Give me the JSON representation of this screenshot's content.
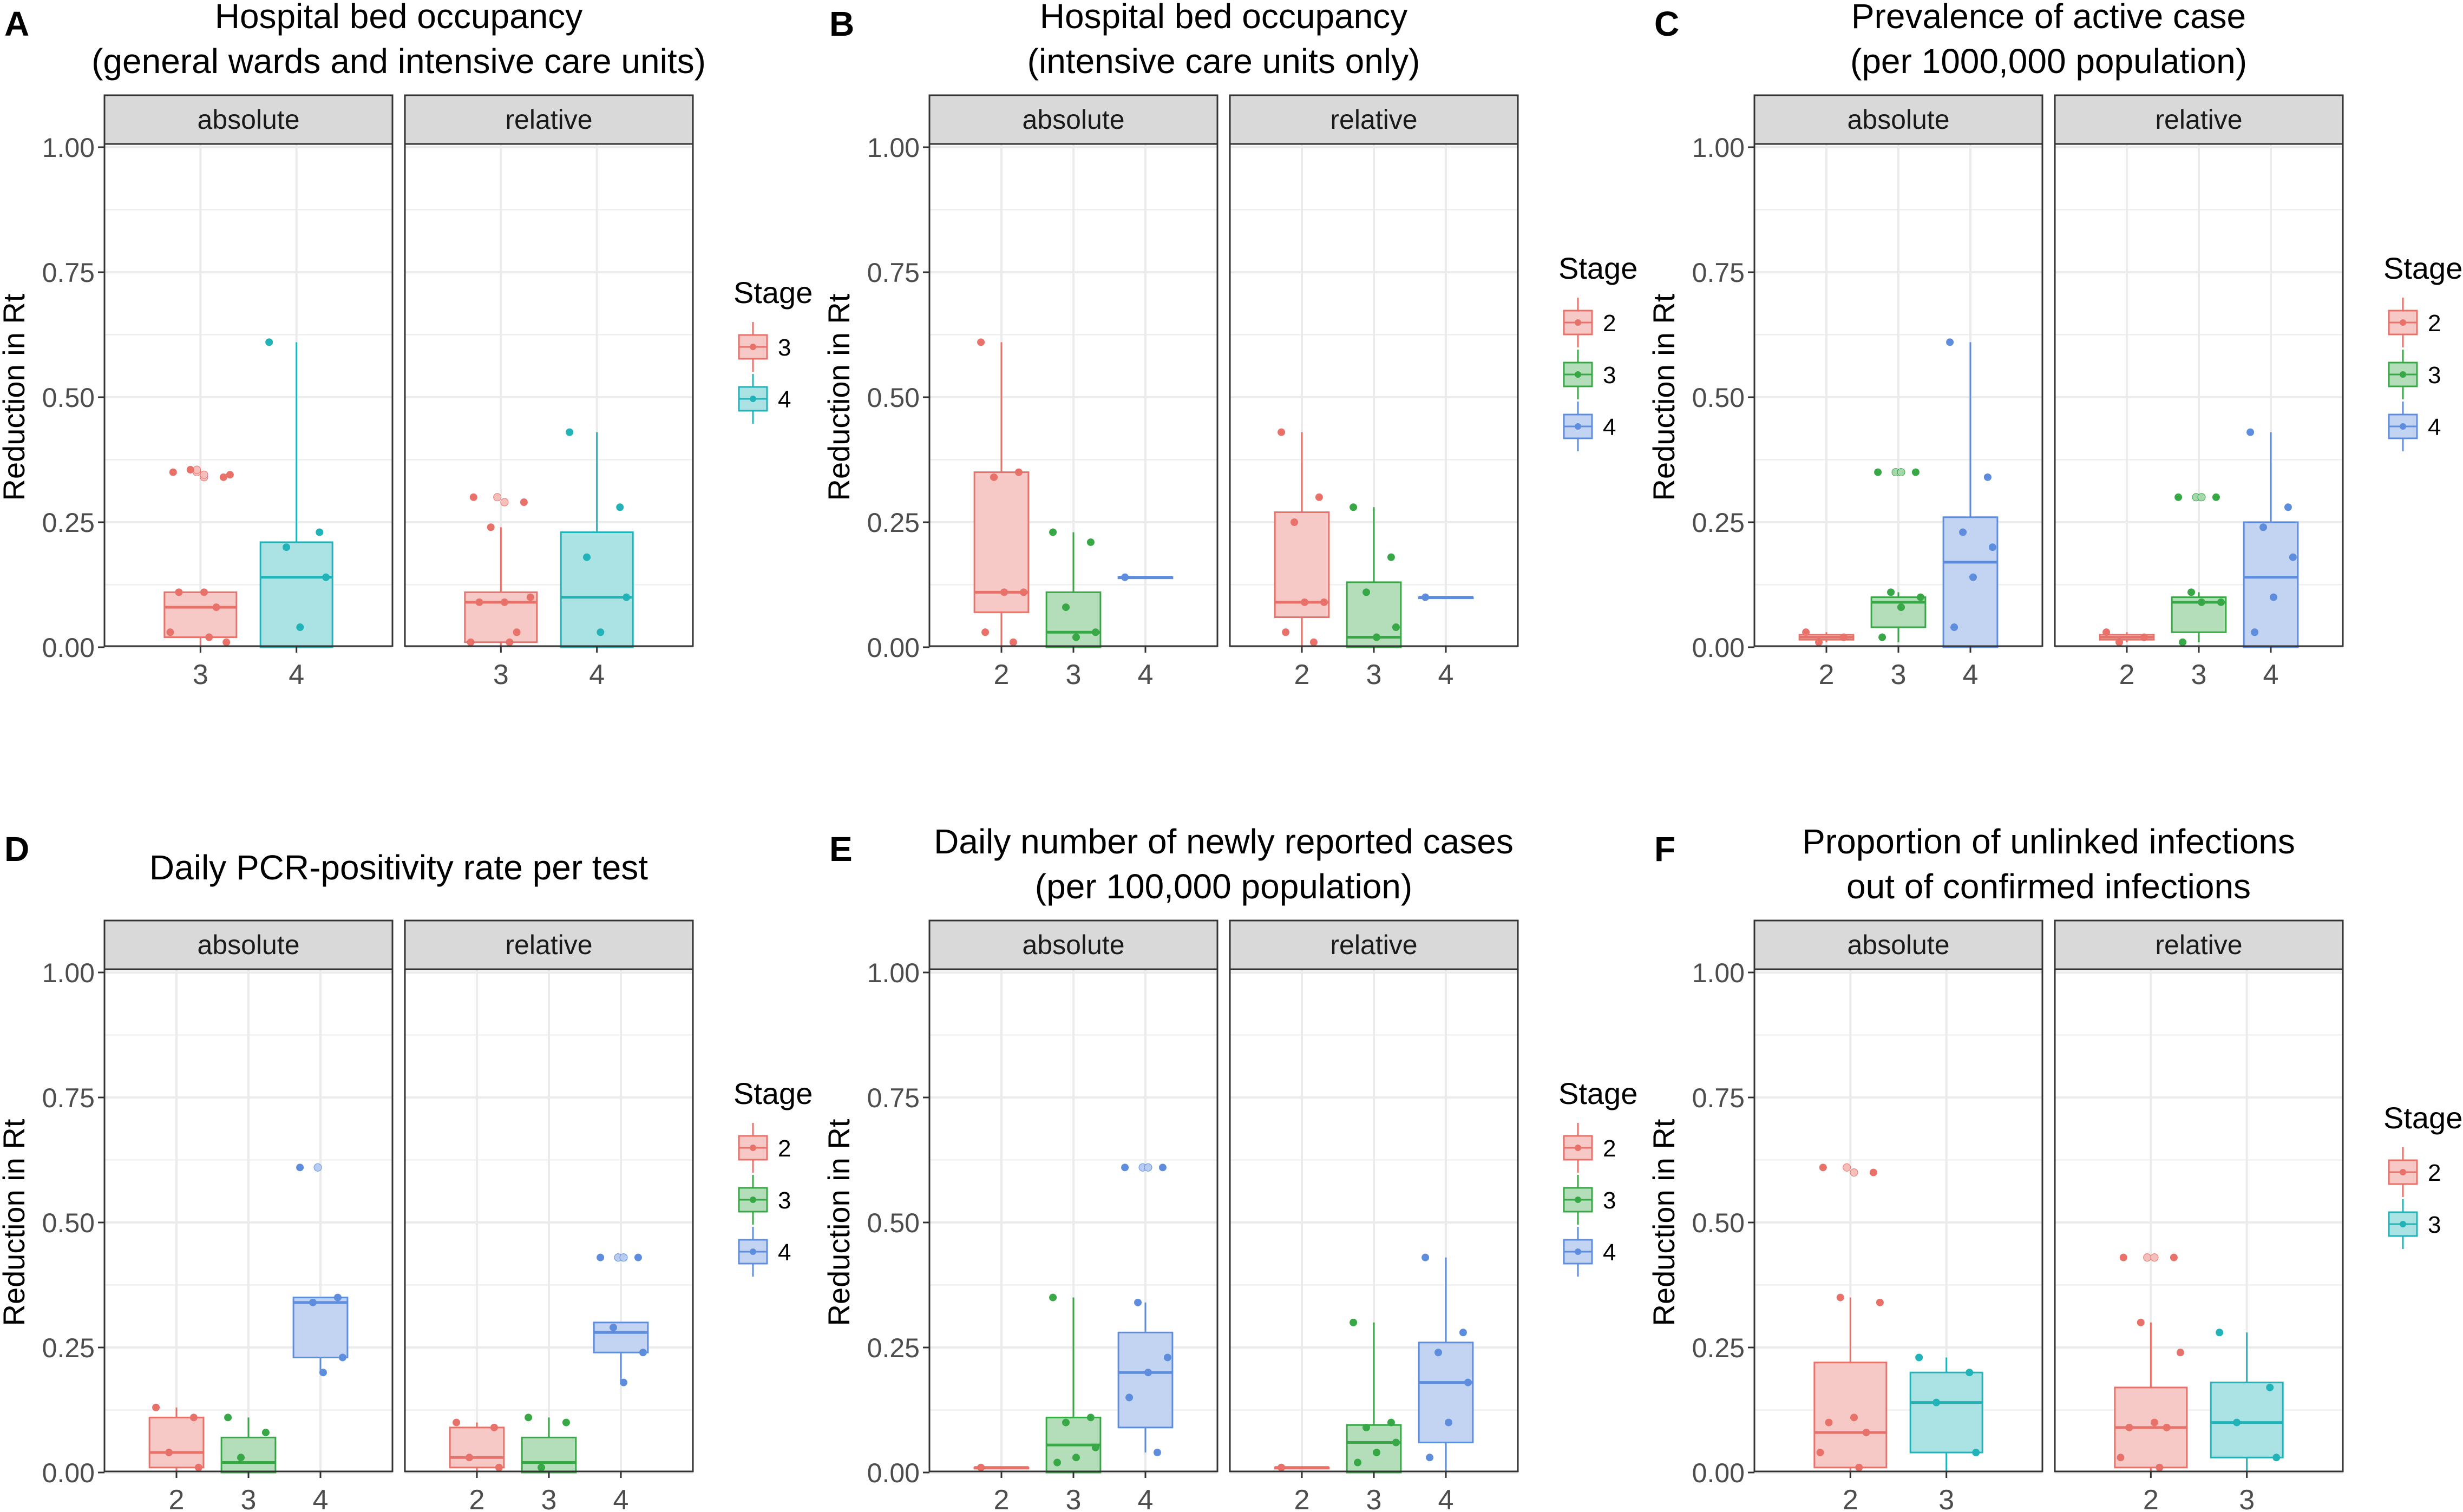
{
  "colors": {
    "stage_2": "#E8716A",
    "stage_3_in_2_3_4": "#38A846",
    "stage_3_in_3_4": "#E8716A",
    "stage_3_in_2_3": "#21B3B8",
    "stage_4_in_2_3_4": "#5F8DDD",
    "stage_4_in_3_4": "#21B3B8",
    "strip_fill": "#d9d9d9",
    "grid": "#ebebeb"
  },
  "chart_data": [
    {
      "type": "boxplot",
      "panel_label": "A",
      "title": [
        "Hospital bed occupancy",
        "(general wards and intensive care units)"
      ],
      "ylabel": "Reduction in Rt",
      "xlabel": "",
      "ylim": [
        0,
        1
      ],
      "yticks": [
        "0.00",
        "0.25",
        "0.50",
        "0.75",
        "1.00"
      ],
      "stages": [
        "3",
        "4"
      ],
      "stage_colors": [
        "#E8716A",
        "#21B3B8"
      ],
      "legend_title": "Stage",
      "facets": [
        {
          "label": "absolute",
          "boxes": [
            {
              "stage": "3",
              "q1": 0.02,
              "median": 0.08,
              "q3": 0.11,
              "whisker_low": 0.0,
              "whisker_high": 0.11,
              "points": [
                0.35,
                0.34,
                0.355,
                0.345,
                0.11,
                0.11,
                0.08,
                0.03,
                0.02,
                0.01
              ],
              "outliers": [
                0.35,
                0.34,
                0.355,
                0.345
              ]
            },
            {
              "stage": "4",
              "q1": 0.0,
              "median": 0.14,
              "q3": 0.21,
              "whisker_low": 0.0,
              "whisker_high": 0.61,
              "points": [
                0.61,
                0.23,
                0.2,
                0.14,
                0.04
              ],
              "outliers": []
            }
          ]
        },
        {
          "label": "relative",
          "boxes": [
            {
              "stage": "3",
              "q1": 0.01,
              "median": 0.09,
              "q3": 0.11,
              "whisker_low": 0.0,
              "whisker_high": 0.24,
              "points": [
                0.3,
                0.29,
                0.24,
                0.1,
                0.09,
                0.09,
                0.03,
                0.01,
                0.01
              ],
              "outliers": [
                0.3,
                0.29
              ]
            },
            {
              "stage": "4",
              "q1": 0.0,
              "median": 0.1,
              "q3": 0.23,
              "whisker_low": 0.0,
              "whisker_high": 0.43,
              "points": [
                0.43,
                0.28,
                0.18,
                0.1,
                0.03
              ],
              "outliers": []
            }
          ]
        }
      ]
    },
    {
      "type": "boxplot",
      "panel_label": "B",
      "title": [
        "Hospital bed occupancy",
        "(intensive care units only)"
      ],
      "ylabel": "Reduction in Rt",
      "xlabel": "",
      "ylim": [
        0,
        1
      ],
      "yticks": [
        "0.00",
        "0.25",
        "0.50",
        "0.75",
        "1.00"
      ],
      "stages": [
        "2",
        "3",
        "4"
      ],
      "stage_colors": [
        "#E8716A",
        "#38A846",
        "#5F8DDD"
      ],
      "legend_title": "Stage",
      "facets": [
        {
          "label": "absolute",
          "boxes": [
            {
              "stage": "2",
              "q1": 0.07,
              "median": 0.11,
              "q3": 0.35,
              "whisker_low": 0.0,
              "whisker_high": 0.61,
              "points": [
                0.61,
                0.35,
                0.34,
                0.11,
                0.11,
                0.03,
                0.01
              ],
              "outliers": []
            },
            {
              "stage": "3",
              "q1": 0.0,
              "median": 0.03,
              "q3": 0.11,
              "whisker_low": 0.0,
              "whisker_high": 0.23,
              "points": [
                0.23,
                0.21,
                0.08,
                0.03,
                0.02
              ],
              "outliers": []
            },
            {
              "stage": "4",
              "q1": 0.14,
              "median": 0.14,
              "q3": 0.14,
              "whisker_low": 0.14,
              "whisker_high": 0.14,
              "points": [
                0.14
              ],
              "outliers": []
            }
          ]
        },
        {
          "label": "relative",
          "boxes": [
            {
              "stage": "2",
              "q1": 0.06,
              "median": 0.09,
              "q3": 0.27,
              "whisker_low": 0.0,
              "whisker_high": 0.43,
              "points": [
                0.43,
                0.3,
                0.25,
                0.09,
                0.09,
                0.03,
                0.01
              ],
              "outliers": []
            },
            {
              "stage": "3",
              "q1": 0.0,
              "median": 0.02,
              "q3": 0.13,
              "whisker_low": 0.0,
              "whisker_high": 0.28,
              "points": [
                0.28,
                0.18,
                0.11,
                0.04,
                0.02
              ],
              "outliers": []
            },
            {
              "stage": "4",
              "q1": 0.1,
              "median": 0.1,
              "q3": 0.1,
              "whisker_low": 0.1,
              "whisker_high": 0.1,
              "points": [
                0.1
              ],
              "outliers": []
            }
          ]
        }
      ]
    },
    {
      "type": "boxplot",
      "panel_label": "C",
      "title": [
        "Prevalence of active case",
        "(per 1000,000 population)"
      ],
      "ylabel": "Reduction in Rt",
      "xlabel": "",
      "ylim": [
        0,
        1
      ],
      "yticks": [
        "0.00",
        "0.25",
        "0.50",
        "0.75",
        "1.00"
      ],
      "stages": [
        "2",
        "3",
        "4"
      ],
      "stage_colors": [
        "#E8716A",
        "#38A846",
        "#5F8DDD"
      ],
      "legend_title": "Stage",
      "facets": [
        {
          "label": "absolute",
          "boxes": [
            {
              "stage": "2",
              "q1": 0.015,
              "median": 0.02,
              "q3": 0.025,
              "whisker_low": 0.01,
              "whisker_high": 0.03,
              "points": [
                0.03,
                0.02,
                0.01
              ],
              "outliers": []
            },
            {
              "stage": "3",
              "q1": 0.04,
              "median": 0.09,
              "q3": 0.1,
              "whisker_low": 0.01,
              "whisker_high": 0.11,
              "points": [
                0.35,
                0.35,
                0.11,
                0.1,
                0.08,
                0.02
              ],
              "outliers": [
                0.35,
                0.35
              ]
            },
            {
              "stage": "4",
              "q1": 0.0,
              "median": 0.17,
              "q3": 0.26,
              "whisker_low": 0.0,
              "whisker_high": 0.61,
              "points": [
                0.61,
                0.34,
                0.23,
                0.2,
                0.14,
                0.04
              ],
              "outliers": []
            }
          ]
        },
        {
          "label": "relative",
          "boxes": [
            {
              "stage": "2",
              "q1": 0.015,
              "median": 0.02,
              "q3": 0.025,
              "whisker_low": 0.01,
              "whisker_high": 0.03,
              "points": [
                0.03,
                0.02,
                0.01
              ],
              "outliers": []
            },
            {
              "stage": "3",
              "q1": 0.03,
              "median": 0.09,
              "q3": 0.1,
              "whisker_low": 0.01,
              "whisker_high": 0.11,
              "points": [
                0.3,
                0.3,
                0.11,
                0.09,
                0.09,
                0.01
              ],
              "outliers": [
                0.3,
                0.3
              ]
            },
            {
              "stage": "4",
              "q1": 0.0,
              "median": 0.14,
              "q3": 0.25,
              "whisker_low": 0.0,
              "whisker_high": 0.43,
              "points": [
                0.43,
                0.28,
                0.24,
                0.18,
                0.1,
                0.03
              ],
              "outliers": []
            }
          ]
        }
      ]
    },
    {
      "type": "boxplot",
      "panel_label": "D",
      "title": [
        "Daily PCR-positivity rate per test"
      ],
      "ylabel": "Reduction in Rt",
      "xlabel": "",
      "ylim": [
        0,
        1
      ],
      "yticks": [
        "0.00",
        "0.25",
        "0.50",
        "0.75",
        "1.00"
      ],
      "stages": [
        "2",
        "3",
        "4"
      ],
      "stage_colors": [
        "#E8716A",
        "#38A846",
        "#5F8DDD"
      ],
      "legend_title": "Stage",
      "facets": [
        {
          "label": "absolute",
          "boxes": [
            {
              "stage": "2",
              "q1": 0.01,
              "median": 0.04,
              "q3": 0.11,
              "whisker_low": 0.0,
              "whisker_high": 0.13,
              "points": [
                0.13,
                0.11,
                0.04,
                0.01
              ],
              "outliers": []
            },
            {
              "stage": "3",
              "q1": 0.0,
              "median": 0.02,
              "q3": 0.07,
              "whisker_low": 0.0,
              "whisker_high": 0.11,
              "points": [
                0.11,
                0.08,
                0.03
              ],
              "outliers": []
            },
            {
              "stage": "4",
              "q1": 0.23,
              "median": 0.34,
              "q3": 0.35,
              "whisker_low": 0.2,
              "whisker_high": 0.35,
              "points": [
                0.61,
                0.35,
                0.34,
                0.23,
                0.2
              ],
              "outliers": [
                0.61
              ]
            }
          ]
        },
        {
          "label": "relative",
          "boxes": [
            {
              "stage": "2",
              "q1": 0.01,
              "median": 0.03,
              "q3": 0.09,
              "whisker_low": 0.0,
              "whisker_high": 0.1,
              "points": [
                0.1,
                0.09,
                0.03,
                0.01
              ],
              "outliers": []
            },
            {
              "stage": "3",
              "q1": 0.0,
              "median": 0.02,
              "q3": 0.07,
              "whisker_low": 0.0,
              "whisker_high": 0.11,
              "points": [
                0.11,
                0.1,
                0.01
              ],
              "outliers": []
            },
            {
              "stage": "4",
              "q1": 0.24,
              "median": 0.28,
              "q3": 0.3,
              "whisker_low": 0.18,
              "whisker_high": 0.3,
              "points": [
                0.43,
                0.43,
                0.29,
                0.24,
                0.18
              ],
              "outliers": [
                0.43,
                0.43
              ]
            }
          ]
        }
      ]
    },
    {
      "type": "boxplot",
      "panel_label": "E",
      "title": [
        "Daily number of newly reported cases",
        "(per 100,000 population)"
      ],
      "ylabel": "Reduction in Rt",
      "xlabel": "",
      "ylim": [
        0,
        1
      ],
      "yticks": [
        "0.00",
        "0.25",
        "0.50",
        "0.75",
        "1.00"
      ],
      "stages": [
        "2",
        "3",
        "4"
      ],
      "stage_colors": [
        "#E8716A",
        "#38A846",
        "#5F8DDD"
      ],
      "legend_title": "Stage",
      "facets": [
        {
          "label": "absolute",
          "boxes": [
            {
              "stage": "2",
              "q1": 0.01,
              "median": 0.01,
              "q3": 0.01,
              "whisker_low": 0.01,
              "whisker_high": 0.01,
              "points": [
                0.01
              ],
              "outliers": []
            },
            {
              "stage": "3",
              "q1": 0.0,
              "median": 0.055,
              "q3": 0.11,
              "whisker_low": 0.0,
              "whisker_high": 0.35,
              "points": [
                0.35,
                0.11,
                0.1,
                0.05,
                0.03,
                0.02
              ],
              "outliers": []
            },
            {
              "stage": "4",
              "q1": 0.09,
              "median": 0.2,
              "q3": 0.28,
              "whisker_low": 0.04,
              "whisker_high": 0.34,
              "points": [
                0.61,
                0.61,
                0.34,
                0.23,
                0.2,
                0.15,
                0.04
              ],
              "outliers": [
                0.61,
                0.61
              ]
            }
          ]
        },
        {
          "label": "relative",
          "boxes": [
            {
              "stage": "2",
              "q1": 0.01,
              "median": 0.01,
              "q3": 0.01,
              "whisker_low": 0.01,
              "whisker_high": 0.01,
              "points": [
                0.01
              ],
              "outliers": []
            },
            {
              "stage": "3",
              "q1": 0.0,
              "median": 0.06,
              "q3": 0.095,
              "whisker_low": 0.0,
              "whisker_high": 0.3,
              "points": [
                0.3,
                0.1,
                0.09,
                0.06,
                0.04,
                0.02
              ],
              "outliers": []
            },
            {
              "stage": "4",
              "q1": 0.06,
              "median": 0.18,
              "q3": 0.26,
              "whisker_low": 0.0,
              "whisker_high": 0.43,
              "points": [
                0.43,
                0.28,
                0.24,
                0.18,
                0.1,
                0.03
              ],
              "outliers": []
            }
          ]
        }
      ]
    },
    {
      "type": "boxplot",
      "panel_label": "F",
      "title": [
        "Proportion of unlinked infections",
        "out of confirmed infections"
      ],
      "ylabel": "Reduction in Rt",
      "xlabel": "",
      "ylim": [
        0,
        1
      ],
      "yticks": [
        "0.00",
        "0.25",
        "0.50",
        "0.75",
        "1.00"
      ],
      "stages": [
        "2",
        "3"
      ],
      "stage_colors": [
        "#E8716A",
        "#21B3B8"
      ],
      "legend_title": "Stage",
      "facets": [
        {
          "label": "absolute",
          "boxes": [
            {
              "stage": "2",
              "q1": 0.01,
              "median": 0.08,
              "q3": 0.22,
              "whisker_low": 0.0,
              "whisker_high": 0.35,
              "points": [
                0.61,
                0.6,
                0.35,
                0.34,
                0.11,
                0.1,
                0.08,
                0.04,
                0.01
              ],
              "outliers": [
                0.61,
                0.6
              ]
            },
            {
              "stage": "3",
              "q1": 0.04,
              "median": 0.14,
              "q3": 0.2,
              "whisker_low": 0.0,
              "whisker_high": 0.23,
              "points": [
                0.23,
                0.2,
                0.14,
                0.04
              ],
              "outliers": []
            }
          ]
        },
        {
          "label": "relative",
          "boxes": [
            {
              "stage": "2",
              "q1": 0.01,
              "median": 0.09,
              "q3": 0.17,
              "whisker_low": 0.0,
              "whisker_high": 0.3,
              "points": [
                0.43,
                0.43,
                0.3,
                0.24,
                0.1,
                0.09,
                0.09,
                0.03,
                0.01
              ],
              "outliers": [
                0.43,
                0.43
              ]
            },
            {
              "stage": "3",
              "q1": 0.03,
              "median": 0.1,
              "q3": 0.18,
              "whisker_low": 0.0,
              "whisker_high": 0.28,
              "points": [
                0.28,
                0.17,
                0.1,
                0.03
              ],
              "outliers": []
            }
          ]
        }
      ]
    }
  ]
}
